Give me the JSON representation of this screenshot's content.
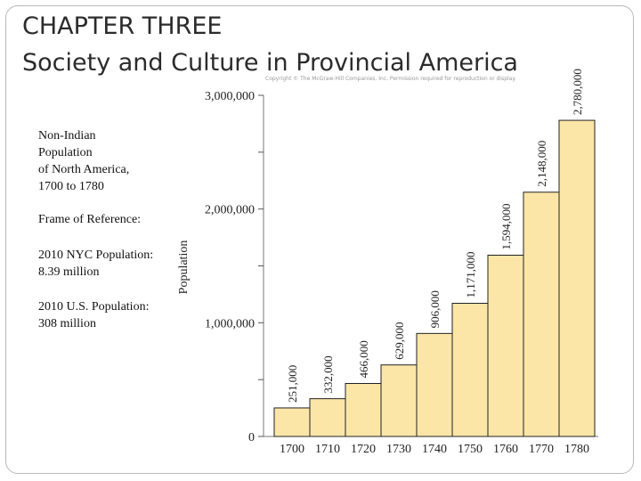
{
  "slide": {
    "title_line1": "CHAPTER THREE",
    "title_line2": "Society and Culture in Provincial America",
    "copyright": "Copyright © The McGraw-Hill Companies, Inc. Permission required for reproduction or display."
  },
  "sidebar": {
    "heading_lines": [
      "Non-Indian",
      "Population",
      "of North America,",
      "1700 to 1780"
    ],
    "frame_of_reference": "Frame of Reference:",
    "nyc_lines": [
      "2010 NYC Population:",
      "8.39 million"
    ],
    "us_lines": [
      "2010 U.S. Population:",
      "308 million"
    ]
  },
  "chart_data": {
    "type": "bar",
    "categories": [
      "1700",
      "1710",
      "1720",
      "1730",
      "1740",
      "1750",
      "1760",
      "1770",
      "1780"
    ],
    "values": [
      251000,
      332000,
      466000,
      629000,
      906000,
      1171000,
      1594000,
      2148000,
      2780000
    ],
    "value_labels": [
      "251,000",
      "332,000",
      "466,000",
      "629,000",
      "906,000",
      "1,171,000",
      "1,594,000",
      "2,148,000",
      "2,780,000"
    ],
    "ylabel": "Population",
    "ylim": [
      0,
      3000000
    ],
    "y_ticks": [
      0,
      500000,
      1000000,
      1500000,
      2000000,
      2500000,
      3000000
    ],
    "y_tick_labels": [
      "0",
      "",
      "1,000,000",
      "",
      "2,000,000",
      "",
      "3,000,000"
    ],
    "grid": false,
    "bar_color": "#fbe6a8",
    "bar_edge_color": "#222222"
  }
}
